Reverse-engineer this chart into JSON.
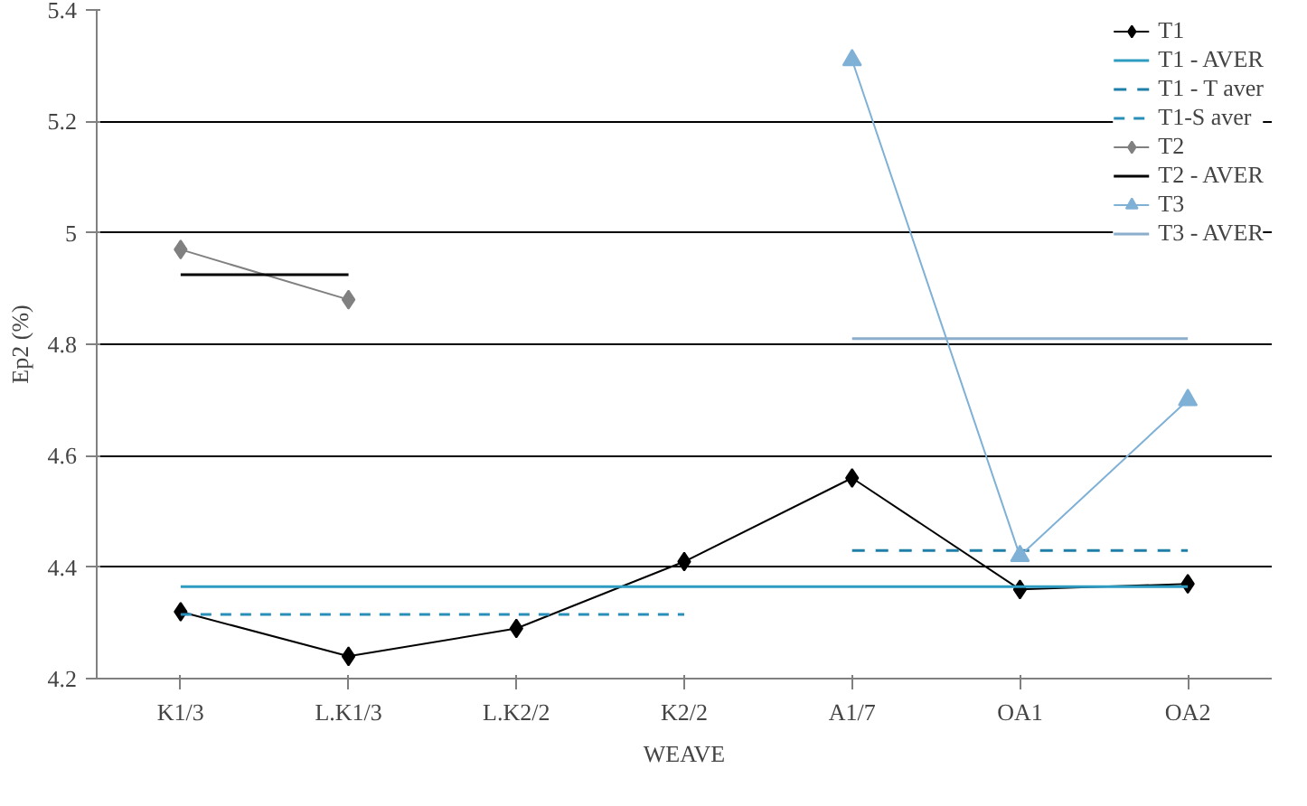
{
  "chart_data": {
    "type": "line",
    "xlabel": "WEAVE",
    "ylabel": "Ep2 (%)",
    "categories": [
      "K1/3",
      "L.K1/3",
      "L.K2/2",
      "K2/2",
      "A1/7",
      "OA1",
      "OA2"
    ],
    "ylim": [
      4.2,
      5.4
    ],
    "yticks": [
      4.2,
      4.4,
      4.6,
      4.8,
      5,
      5.2,
      5.4
    ],
    "grid": "y",
    "legend": "top right",
    "series": [
      {
        "name": "T1",
        "color": "#000000",
        "marker": "diamond",
        "line_style": "solid",
        "values": [
          4.32,
          4.24,
          4.29,
          4.41,
          4.56,
          4.36,
          4.37
        ]
      },
      {
        "name": "T1 - AVER",
        "color": "#2e9bc0",
        "marker": "none",
        "line_style": "solid",
        "values": [
          4.365,
          4.365,
          4.365,
          4.365,
          4.365,
          4.365,
          4.365
        ]
      },
      {
        "name": "T1 - T aver",
        "color": "#1f7fa8",
        "marker": "none",
        "line_style": "dashed",
        "values": [
          null,
          null,
          null,
          null,
          4.43,
          4.43,
          4.43
        ]
      },
      {
        "name": "T1-S aver",
        "color": "#2a8fb8",
        "marker": "none",
        "line_style": "dashed",
        "values": [
          4.315,
          4.315,
          4.315,
          4.315,
          null,
          null,
          null
        ]
      },
      {
        "name": "T2",
        "color": "#808080",
        "marker": "diamond",
        "line_style": "solid",
        "values": [
          4.97,
          4.88,
          null,
          null,
          null,
          null,
          null
        ]
      },
      {
        "name": "T2 - AVER",
        "color": "#000000",
        "marker": "none",
        "line_style": "solid",
        "values": [
          4.925,
          4.925,
          null,
          null,
          null,
          null,
          null
        ]
      },
      {
        "name": "T3",
        "color": "#7fb0d6",
        "marker": "triangle",
        "line_style": "solid",
        "values": [
          null,
          null,
          null,
          null,
          5.31,
          4.42,
          4.7
        ]
      },
      {
        "name": "T3 - AVER",
        "color": "#8aaecb",
        "marker": "none",
        "line_style": "solid",
        "values": [
          null,
          null,
          null,
          null,
          4.81,
          4.81,
          4.81
        ]
      }
    ]
  }
}
